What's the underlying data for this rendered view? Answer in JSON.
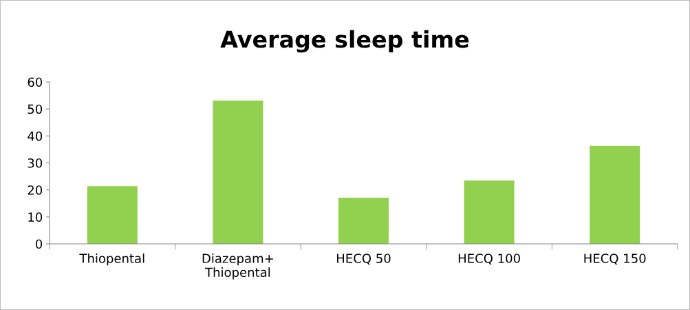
{
  "chart_data": {
    "type": "bar",
    "title": "Average sleep time",
    "categories": [
      "Thiopental",
      "Diazepam+\nThiopental",
      "HECQ 50",
      "HECQ 100",
      "HECQ 150"
    ],
    "values": [
      21.4,
      53.1,
      17.1,
      23.5,
      36.3
    ],
    "color": "#92d050",
    "ylim": [
      0,
      60
    ],
    "yticks": [
      0,
      10,
      20,
      30,
      40,
      50,
      60
    ],
    "grid": false,
    "legend": false
  }
}
